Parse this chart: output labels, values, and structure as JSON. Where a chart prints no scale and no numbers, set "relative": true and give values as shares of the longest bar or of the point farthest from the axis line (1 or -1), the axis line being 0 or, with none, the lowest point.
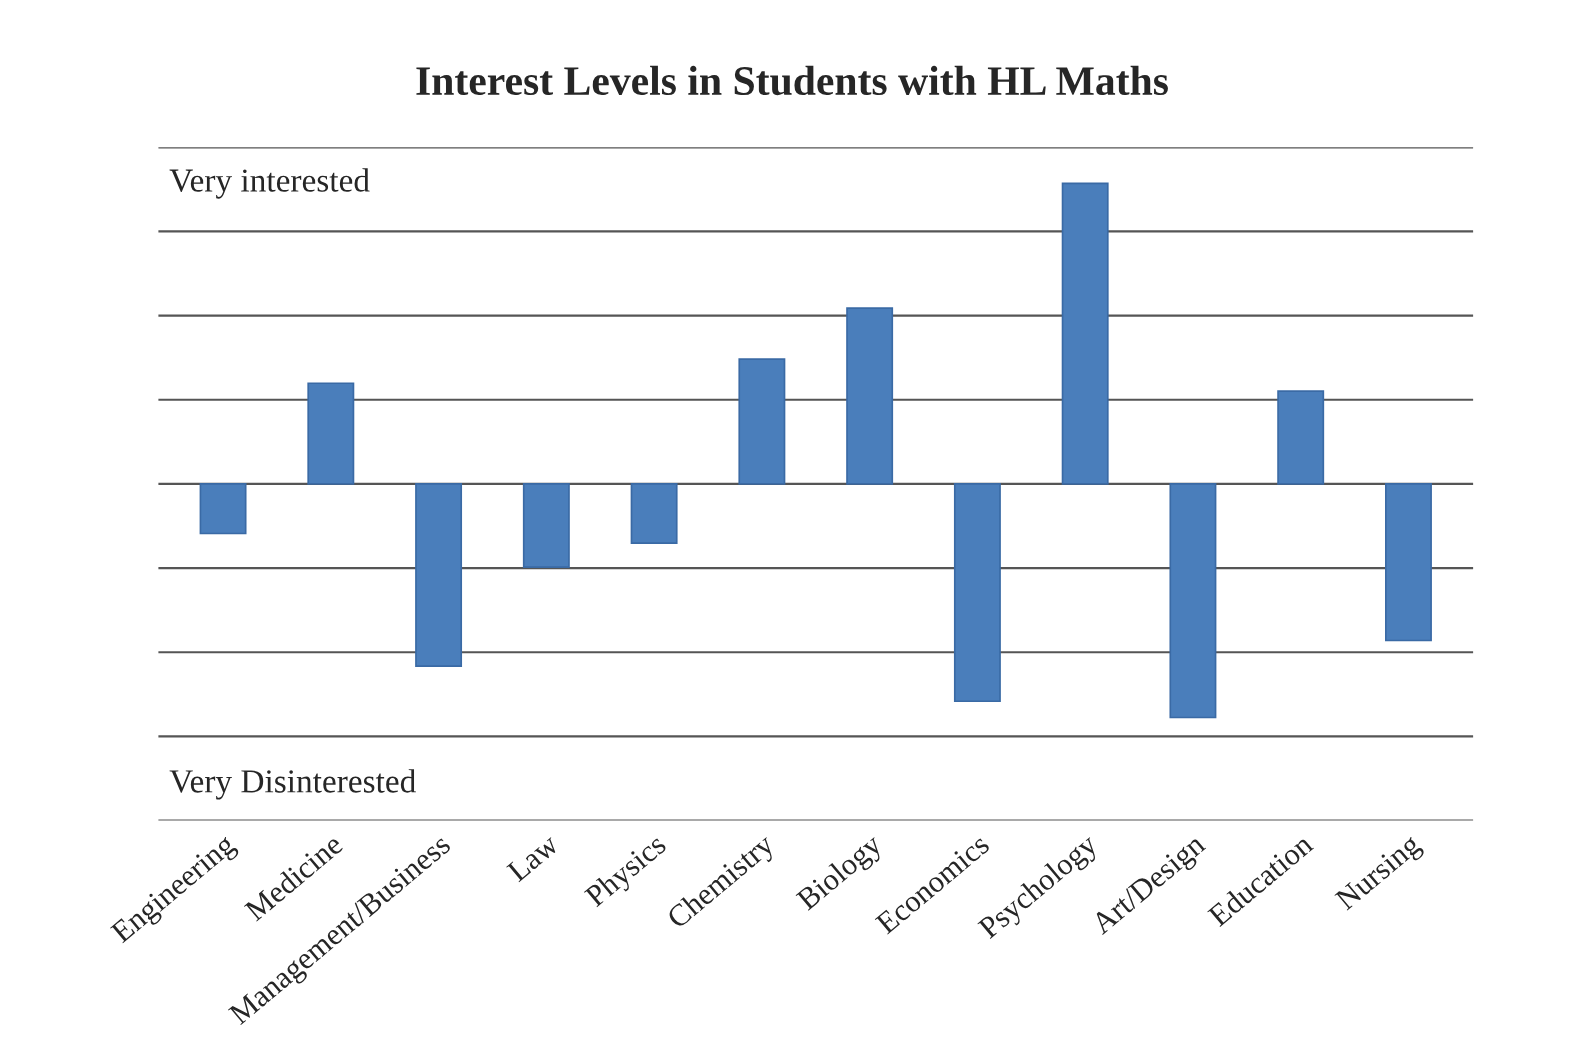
{
  "chart_data": {
    "type": "bar",
    "title": "Interest Levels in Students with HL Maths",
    "categories": [
      "Engineering",
      "Medicine",
      "Management/Business",
      "Law",
      "Physics",
      "Chemistry",
      "Biology",
      "Economics",
      "Psychology",
      "Art/Design",
      "Education",
      "Nursing"
    ],
    "values": [
      -0.165,
      0.335,
      -0.606,
      -0.277,
      -0.197,
      0.415,
      0.585,
      -0.723,
      1,
      -0.777,
      0.309,
      -0.521
    ],
    "color": "#4a7ebb",
    "relative": true,
    "grid": "y",
    "annotations": [
      "Very interested",
      "Very Disinterested"
    ]
  }
}
